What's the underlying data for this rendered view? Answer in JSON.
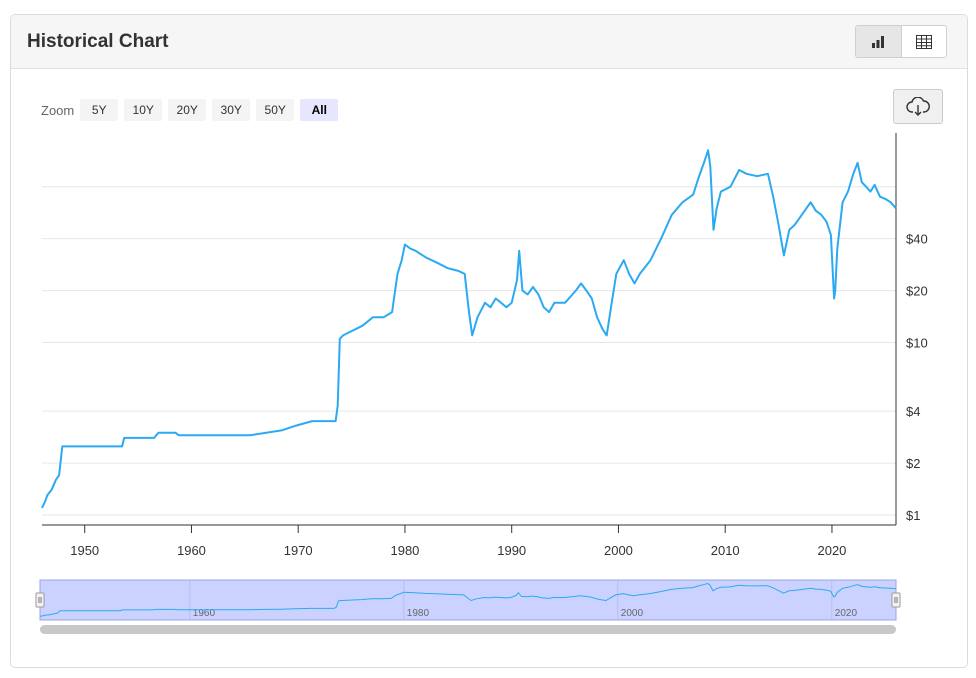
{
  "header": {
    "title": "Historical Chart"
  },
  "view_toggle": {
    "chart_icon": "bar-chart-icon",
    "table_icon": "table-icon",
    "active": "chart"
  },
  "zoom": {
    "label": "Zoom",
    "options": [
      "5Y",
      "10Y",
      "20Y",
      "30Y",
      "50Y",
      "All"
    ],
    "selected": "All"
  },
  "download": {
    "icon": "cloud-download-icon"
  },
  "colors": {
    "line": "#2baaf2",
    "navigator_fill": "#ccd2ff",
    "grid": "#e6e6e6"
  },
  "chart_data": {
    "type": "line",
    "y_scale": "log",
    "y_ticks": [
      {
        "value": 1,
        "label": "$1"
      },
      {
        "value": 2,
        "label": "$2"
      },
      {
        "value": 4,
        "label": "$4"
      },
      {
        "value": 10,
        "label": "$10"
      },
      {
        "value": 20,
        "label": "$20"
      },
      {
        "value": 40,
        "label": "$40"
      }
    ],
    "x_ticks": [
      1950,
      1960,
      1970,
      1980,
      1990,
      2000,
      2010,
      2020
    ],
    "xlim": [
      1946,
      2026
    ],
    "navigator_ticks": [
      1960,
      1980,
      2000,
      2020
    ],
    "series": [
      {
        "x": [
          1946.0,
          1946.3,
          1946.5,
          1946.9,
          1947.3,
          1947.6,
          1947.9,
          1953.5,
          1953.7,
          1956.5,
          1956.9,
          1958.5,
          1958.8,
          1965.5,
          1967.0,
          1968.5,
          1969.8,
          1971.3,
          1973.5,
          1973.7,
          1973.9,
          1974.2,
          1976.0,
          1977.0,
          1978.0,
          1978.8,
          1979.3,
          1979.7,
          1980.0,
          1980.5,
          1981.0,
          1982.0,
          1983.0,
          1984.0,
          1985.0,
          1985.6,
          1986.0,
          1986.3,
          1986.8,
          1987.5,
          1988.0,
          1988.5,
          1989.0,
          1989.5,
          1990.0,
          1990.5,
          1990.7,
          1991.0,
          1991.5,
          1992.0,
          1992.5,
          1993.0,
          1993.5,
          1994.0,
          1995.0,
          1996.0,
          1996.5,
          1997.0,
          1997.5,
          1998.0,
          1998.5,
          1998.9,
          1999.3,
          1999.8,
          2000.5,
          2001.0,
          2001.5,
          2002.0,
          2003.0,
          2004.0,
          2005.0,
          2006.0,
          2007.0,
          2007.5,
          2008.0,
          2008.4,
          2008.6,
          2008.9,
          2009.2,
          2009.6,
          2010.5,
          2011.3,
          2012.0,
          2013.0,
          2014.0,
          2014.5,
          2015.0,
          2015.5,
          2016.0,
          2016.5,
          2017.0,
          2018.0,
          2018.5,
          2019.0,
          2019.5,
          2019.9,
          2020.2,
          2020.3,
          2020.5,
          2021.0,
          2021.5,
          2022.0,
          2022.4,
          2022.8,
          2023.2,
          2023.6,
          2024.0,
          2024.5,
          2025.0,
          2025.5,
          2026.0
        ],
        "values": [
          1.1,
          1.2,
          1.3,
          1.4,
          1.6,
          1.7,
          2.5,
          2.5,
          2.8,
          2.8,
          3.0,
          3.0,
          2.9,
          2.9,
          3.0,
          3.1,
          3.3,
          3.5,
          3.5,
          4.3,
          10.5,
          11.0,
          12.5,
          14.0,
          14.0,
          15.0,
          25.0,
          30.0,
          37.0,
          35.0,
          34.0,
          31.0,
          29.0,
          27.0,
          26.0,
          25.0,
          15.0,
          11.0,
          14.0,
          17.0,
          16.0,
          18.0,
          17.0,
          16.0,
          17.0,
          23.0,
          34.0,
          20.0,
          19.0,
          21.0,
          19.0,
          16.0,
          15.0,
          17.0,
          17.0,
          20.0,
          22.0,
          20.0,
          18.0,
          14.0,
          12.0,
          11.0,
          16.0,
          25.0,
          30.0,
          25.0,
          22.0,
          25.0,
          30.0,
          40.0,
          55.0,
          65.0,
          72.0,
          90.0,
          110.0,
          130.0,
          105.0,
          45.0,
          60.0,
          75.0,
          80.0,
          100.0,
          95.0,
          92.0,
          95.0,
          70.0,
          48.0,
          32.0,
          45.0,
          48.0,
          53.0,
          65.0,
          58.0,
          55.0,
          50.0,
          42.0,
          18.0,
          20.0,
          35.0,
          65.0,
          75.0,
          95.0,
          110.0,
          85.0,
          80.0,
          75.0,
          82.0,
          70.0,
          68.0,
          65.0,
          60.0
        ]
      }
    ]
  }
}
